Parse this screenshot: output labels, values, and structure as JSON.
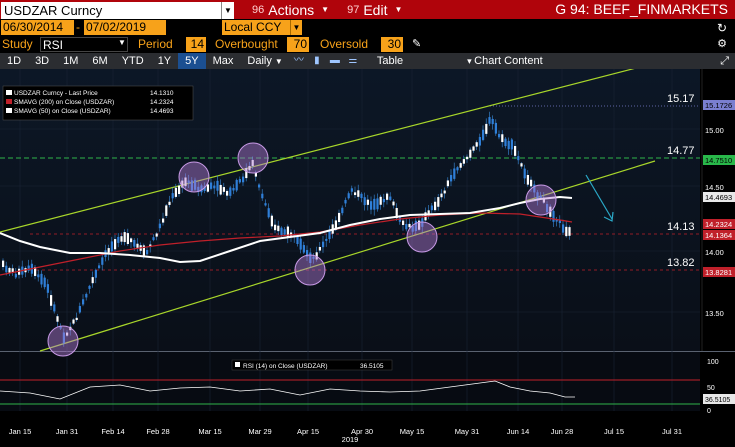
{
  "header": {
    "ticker": "USDZAR Curncy",
    "actions_num": "96",
    "actions_label": "Actions",
    "edit_num": "97",
    "edit_label": "Edit",
    "title": "G 94: BEEF_FINMARKETS"
  },
  "dates": {
    "start": "06/30/2014",
    "end": "07/02/2019",
    "currency": "Local CCY"
  },
  "study": {
    "label": "Study",
    "value": "RSI",
    "period_label": "Period",
    "period": "14",
    "overbought_label": "Overbought",
    "overbought": "70",
    "oversold_label": "Oversold",
    "oversold": "30"
  },
  "toolbar": {
    "ranges": [
      "1D",
      "3D",
      "1M",
      "6M",
      "YTD",
      "1Y",
      "5Y",
      "Max"
    ],
    "active_range": "5Y",
    "frequency": "Daily",
    "table_label": "Table",
    "chart_content_label": "Chart Content"
  },
  "legend": [
    {
      "label": "USDZAR Curncy - Last Price",
      "value": "14.1310",
      "color": "#ffffff"
    },
    {
      "label": "SMAVG (200)  on Close (USDZAR)",
      "value": "14.2324",
      "color": "#c0202a"
    },
    {
      "label": "SMAVG (50)  on Close (USDZAR)",
      "value": "14.4693",
      "color": "#ffffff"
    }
  ],
  "price_levels": [
    {
      "label": "15.17",
      "color": "#ffffff"
    },
    {
      "label": "14.77",
      "color": "#ffffff"
    },
    {
      "label": "14.13",
      "color": "#ffffff"
    },
    {
      "label": "13.82",
      "color": "#ffffff"
    }
  ],
  "axis_ticks": [
    "15.00",
    "14.50",
    "14.00",
    "13.50"
  ],
  "axis_tags": [
    {
      "label": "15.1726",
      "bg": "#7a7fd0",
      "fg": "#000000"
    },
    {
      "label": "14.7510",
      "bg": "#29b84a",
      "fg": "#000000"
    },
    {
      "label": "14.4693",
      "bg": "#e8e8e8",
      "fg": "#000000"
    },
    {
      "label": "14.2324",
      "bg": "#c0202a",
      "fg": "#ffffff"
    },
    {
      "label": "14.1364",
      "bg": "#c0202a",
      "fg": "#ffffff"
    },
    {
      "label": "13.8281",
      "bg": "#c0202a",
      "fg": "#ffffff"
    }
  ],
  "rsi": {
    "legend": "RSI (14)  on Close (USDZAR)",
    "value": "36.5105",
    "ticks": [
      "100",
      "50",
      "0"
    ]
  },
  "x_axis": {
    "labels": [
      "Jan 15",
      "Jan 31",
      "Feb 14",
      "Feb 28",
      "Mar 15",
      "Mar 29",
      "Apr 15",
      "Apr 30",
      "May 15",
      "May 31",
      "Jun 14",
      "Jun 28",
      "Jul 15",
      "Jul 31"
    ],
    "year": "2019"
  },
  "colors": {
    "top_bar": "#b0040b",
    "accent_orange": "#f7a21a",
    "channel_green": "#a8d62a",
    "circle_purple": "#b47cd8",
    "arrow_blue": "#2aa9c8",
    "sma200": "#c0202a"
  }
}
